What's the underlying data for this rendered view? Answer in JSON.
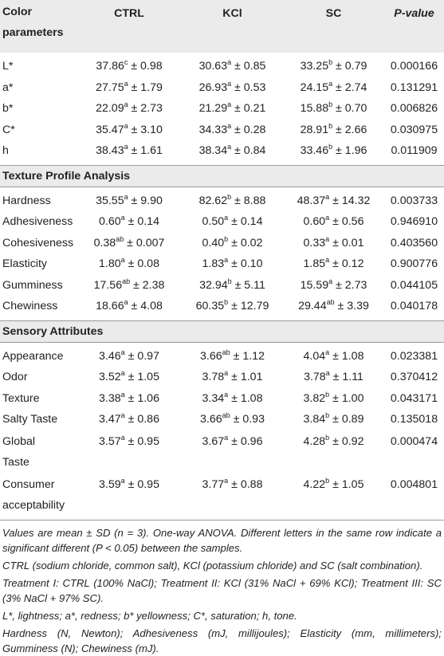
{
  "table": {
    "header": {
      "param_line1": "Color",
      "param_line2": "parameters",
      "ctrl": "CTRL",
      "kcl": "KCl",
      "sc": "SC",
      "pvalue": "P-value"
    },
    "sections": [
      {
        "title": "",
        "rows": [
          {
            "label": "L*",
            "ctrl": {
              "v": "37.86",
              "s": "c",
              "e": " ± 0.98"
            },
            "kcl": {
              "v": "30.63",
              "s": "a",
              "e": " ± 0.85"
            },
            "sc": {
              "v": "33.25",
              "s": "b",
              "e": " ± 0.79"
            },
            "p": "0.000166"
          },
          {
            "label": "a*",
            "ctrl": {
              "v": "27.75",
              "s": "a",
              "e": " ± 1.79"
            },
            "kcl": {
              "v": "26.93",
              "s": "a",
              "e": " ± 0.53"
            },
            "sc": {
              "v": "24.15",
              "s": "a",
              "e": " ± 2.74"
            },
            "p": "0.131291"
          },
          {
            "label": "b*",
            "ctrl": {
              "v": "22.09",
              "s": "a",
              "e": " ± 2.73"
            },
            "kcl": {
              "v": "21.29",
              "s": "a",
              "e": " ± 0.21"
            },
            "sc": {
              "v": "15.88",
              "s": "b",
              "e": " ± 0.70"
            },
            "p": "0.006826"
          },
          {
            "label": "C*",
            "ctrl": {
              "v": "35.47",
              "s": "a",
              "e": " ± 3.10"
            },
            "kcl": {
              "v": "34.33",
              "s": "a",
              "e": " ± 0.28"
            },
            "sc": {
              "v": "28.91",
              "s": "b",
              "e": " ± 2.66"
            },
            "p": "0.030975"
          },
          {
            "label": "h",
            "ctrl": {
              "v": "38.43",
              "s": "a",
              "e": " ± 1.61"
            },
            "kcl": {
              "v": "38.34",
              "s": "a",
              "e": " ± 0.84"
            },
            "sc": {
              "v": "33.46",
              "s": "b",
              "e": " ± 1.96"
            },
            "p": "0.011909"
          }
        ]
      },
      {
        "title": "Texture Profile Analysis",
        "rows": [
          {
            "label": "Hardness",
            "ctrl": {
              "v": "35.55",
              "s": "a",
              "e": " ± 9.90"
            },
            "kcl": {
              "v": "82.62",
              "s": "b",
              "e": " ± 8.88"
            },
            "sc": {
              "v": "48.37",
              "s": "a",
              "e": " ± 14.32"
            },
            "p": "0.003733"
          },
          {
            "label": "Adhesiveness",
            "ctrl": {
              "v": "0.60",
              "s": "a",
              "e": " ± 0.14"
            },
            "kcl": {
              "v": "0.50",
              "s": "a",
              "e": " ± 0.14"
            },
            "sc": {
              "v": "0.60",
              "s": "a",
              "e": " ± 0.56"
            },
            "p": "0.946910"
          },
          {
            "label": "Cohesiveness",
            "ctrl": {
              "v": "0.38",
              "s": "ab",
              "e": " ± 0.007"
            },
            "kcl": {
              "v": "0.40",
              "s": "b",
              "e": " ± 0.02"
            },
            "sc": {
              "v": "0.33",
              "s": "a",
              "e": " ± 0.01"
            },
            "p": "0.403560"
          },
          {
            "label": "Elasticity",
            "ctrl": {
              "v": "1.80",
              "s": "a",
              "e": " ± 0.08"
            },
            "kcl": {
              "v": "1.83",
              "s": "a",
              "e": " ± 0.10"
            },
            "sc": {
              "v": "1.85",
              "s": "a",
              "e": " ± 0.12"
            },
            "p": "0.900776"
          },
          {
            "label": "Gumminess",
            "ctrl": {
              "v": "17.56",
              "s": "ab",
              "e": " ± 2.38"
            },
            "kcl": {
              "v": "32.94",
              "s": "b",
              "e": " ± 5.11"
            },
            "sc": {
              "v": "15.59",
              "s": "a",
              "e": " ± 2.73"
            },
            "p": "0.044105"
          },
          {
            "label": "Chewiness",
            "ctrl": {
              "v": "18.66",
              "s": "a",
              "e": " ± 4.08"
            },
            "kcl": {
              "v": "60.35",
              "s": "b",
              "e": " ± 12.79"
            },
            "sc": {
              "v": "29.44",
              "s": "ab",
              "e": " ± 3.39"
            },
            "p": "0.040178"
          }
        ]
      },
      {
        "title": "Sensory Attributes",
        "rows": [
          {
            "label": "Appearance",
            "ctrl": {
              "v": "3.46",
              "s": "a",
              "e": " ± 0.97"
            },
            "kcl": {
              "v": "3.66",
              "s": "ab",
              "e": " ± 1.12"
            },
            "sc": {
              "v": "4.04",
              "s": "a",
              "e": " ± 1.08"
            },
            "p": "0.023381"
          },
          {
            "label": "Odor",
            "ctrl": {
              "v": "3.52",
              "s": "a",
              "e": " ± 1.05"
            },
            "kcl": {
              "v": "3.78",
              "s": "a",
              "e": " ± 1.01"
            },
            "sc": {
              "v": "3.78",
              "s": "a",
              "e": " ± 1.11"
            },
            "p": "0.370412"
          },
          {
            "label": "Texture",
            "ctrl": {
              "v": "3.38",
              "s": "a",
              "e": " ± 1.06"
            },
            "kcl": {
              "v": "3.34",
              "s": "a",
              "e": " ± 1.08"
            },
            "sc": {
              "v": "3.82",
              "s": "b",
              "e": " ± 1.00"
            },
            "p": "0.043171"
          },
          {
            "label": "Salty Taste",
            "ctrl": {
              "v": "3.47",
              "s": "a",
              "e": " ± 0.86"
            },
            "kcl": {
              "v": "3.66",
              "s": "ab",
              "e": " ± 0.93"
            },
            "sc": {
              "v": "3.84",
              "s": "b",
              "e": " ± 0.89"
            },
            "p": "0.135018"
          },
          {
            "label": "Global Taste",
            "label1": "Global",
            "label2": "Taste",
            "ctrl": {
              "v": "3.57",
              "s": "a",
              "e": " ± 0.95"
            },
            "kcl": {
              "v": "3.67",
              "s": "a",
              "e": " ± 0.96"
            },
            "sc": {
              "v": "4.28",
              "s": "b",
              "e": " ± 0.92"
            },
            "p": "0.000474"
          },
          {
            "label": "Consumer acceptability",
            "label1": "Consumer",
            "label2": "acceptability",
            "ctrl": {
              "v": "3.59",
              "s": "a",
              "e": " ± 0.95"
            },
            "kcl": {
              "v": "3.77",
              "s": "a",
              "e": " ± 0.88"
            },
            "sc": {
              "v": "4.22",
              "s": "b",
              "e": " ± 1.05"
            },
            "p": "0.004801"
          }
        ]
      }
    ]
  },
  "notes": [
    "Values are mean ± SD (n = 3). One-way ANOVA. Different letters in the same row indicate a significant different (P < 0.05) between the samples.",
    "CTRL (sodium chloride, common salt), KCl (potassium chloride) and SC (salt combination).",
    "Treatment I: CTRL (100% NaCl); Treatment II: KCl (31% NaCl + 69% KCl); Treatment III: SC (3% NaCl + 97% SC).",
    "L*, lightness; a*, redness; b* yellowness; C*, saturation; h, tone.",
    "Hardness (N, Newton); Adhesiveness (mJ, millijoules); Elasticity (mm, millimeters); Gumminess (N); Chewiness (mJ)."
  ]
}
